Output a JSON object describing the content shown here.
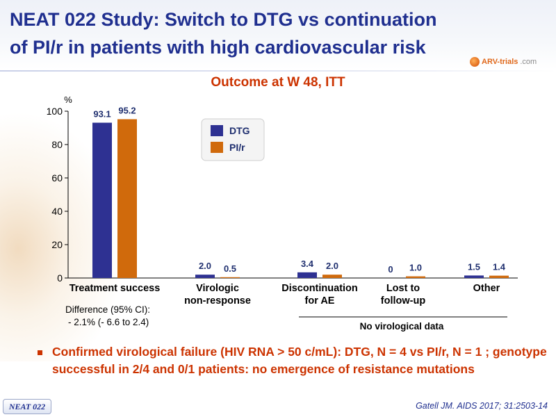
{
  "title_line1": "NEAT 022 Study: Switch to DTG vs continuation",
  "title_line2": "of PI/r in patients with high cardiovascular risk",
  "logo": {
    "part1": "ARV-trials",
    "part2": ".com"
  },
  "chart_title": "Outcome at W 48, ITT",
  "chart_data": {
    "type": "bar",
    "title": "Outcome at W 48, ITT",
    "ylabel": "%",
    "xlabel": "",
    "ylim": [
      0,
      100
    ],
    "yticks": [
      0,
      20,
      40,
      60,
      80,
      100
    ],
    "grid": false,
    "legend_placement": "inside-top-center",
    "categories": [
      [
        "Treatment success"
      ],
      [
        "Virologic",
        "non-response"
      ],
      [
        "Discontinuation",
        "for AE"
      ],
      [
        "Lost to",
        "follow-up"
      ],
      [
        "Other"
      ]
    ],
    "series": [
      {
        "name": "DTG",
        "color": "#2e3192",
        "values": [
          93.1,
          2.0,
          3.4,
          0,
          1.5
        ],
        "labels": [
          "93.1",
          "2.0",
          "3.4",
          "0",
          "1.5"
        ]
      },
      {
        "name": "PI/r",
        "color": "#d06a0c",
        "values": [
          95.2,
          0.5,
          2.0,
          1.0,
          1.4
        ],
        "labels": [
          "95.2",
          "0.5",
          "2.0",
          "1.0",
          "1.4"
        ]
      }
    ],
    "annotations": {
      "difference_line1": "Difference (95% CI):",
      "difference_line2": "- 2.1% (- 6.6 to 2.4)",
      "group_label": "No virological data"
    }
  },
  "bullet": "Confirmed virological failure (HIV RNA > 50 c/mL): DTG, N = 4 vs PI/r, N = 1 ; genotype successful in 2/4 and 0/1 patients: no emergence of resistance mutations",
  "badge": "NEAT 022",
  "citation": "Gatell JM. AIDS 2017; 31:2503-14"
}
